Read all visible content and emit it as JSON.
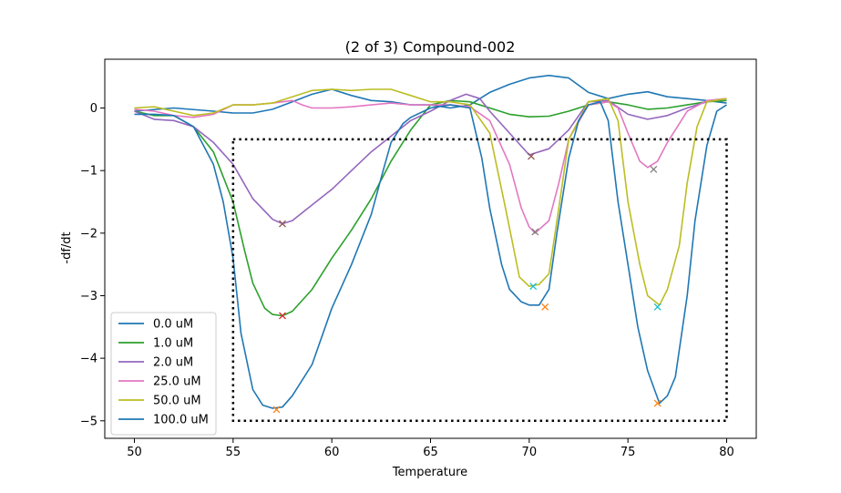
{
  "chart_data": {
    "type": "line",
    "title": "(2 of 3) Compound-002",
    "xlabel": "Temperature",
    "ylabel": "-df/dt",
    "xlim": [
      48.5,
      81.5
    ],
    "ylim": [
      -5.28,
      0.78
    ],
    "xticks": [
      50,
      55,
      60,
      65,
      70,
      75,
      80
    ],
    "yticks": [
      0,
      -1,
      -2,
      -3,
      -4,
      -5
    ],
    "grid": false,
    "legend_position": "lower-left",
    "series": [
      {
        "name": "0.0 uM",
        "color": "#1f77b4",
        "points": [
          [
            50,
            -0.05
          ],
          [
            52,
            0.0
          ],
          [
            54,
            -0.05
          ],
          [
            55,
            -0.08
          ],
          [
            56,
            -0.08
          ],
          [
            57,
            -0.02
          ],
          [
            58,
            0.1
          ],
          [
            59,
            0.22
          ],
          [
            60,
            0.3
          ],
          [
            61,
            0.2
          ],
          [
            62,
            0.12
          ],
          [
            63,
            0.1
          ],
          [
            64,
            0.05
          ],
          [
            65,
            0.05
          ],
          [
            66,
            0.0
          ],
          [
            67,
            0.05
          ],
          [
            68,
            0.25
          ],
          [
            69,
            0.38
          ],
          [
            70,
            0.48
          ],
          [
            71,
            0.52
          ],
          [
            72,
            0.48
          ],
          [
            73,
            0.25
          ],
          [
            74,
            0.15
          ],
          [
            75,
            0.22
          ],
          [
            76,
            0.26
          ],
          [
            77,
            0.18
          ],
          [
            78,
            0.15
          ],
          [
            79,
            0.12
          ],
          [
            80,
            0.08
          ]
        ]
      },
      {
        "name": "1.0 uM",
        "color": "#2ca02c",
        "points": [
          [
            50,
            -0.05
          ],
          [
            51,
            -0.12
          ],
          [
            52,
            -0.12
          ],
          [
            53,
            -0.3
          ],
          [
            54,
            -0.7
          ],
          [
            55,
            -1.5
          ],
          [
            55.6,
            -2.3
          ],
          [
            56,
            -2.8
          ],
          [
            56.6,
            -3.2
          ],
          [
            57,
            -3.3
          ],
          [
            57.5,
            -3.32
          ],
          [
            58,
            -3.25
          ],
          [
            59,
            -2.9
          ],
          [
            60,
            -2.4
          ],
          [
            61,
            -1.95
          ],
          [
            62,
            -1.45
          ],
          [
            63,
            -0.85
          ],
          [
            64,
            -0.35
          ],
          [
            65,
            0.05
          ],
          [
            66,
            0.12
          ],
          [
            67,
            0.1
          ],
          [
            68,
            0.0
          ],
          [
            69,
            -0.1
          ],
          [
            70,
            -0.14
          ],
          [
            71,
            -0.13
          ],
          [
            72,
            -0.05
          ],
          [
            73,
            0.05
          ],
          [
            74,
            0.1
          ],
          [
            75,
            0.05
          ],
          [
            76,
            -0.02
          ],
          [
            77,
            0.0
          ],
          [
            78,
            0.05
          ],
          [
            79,
            0.1
          ],
          [
            80,
            0.12
          ]
        ]
      },
      {
        "name": "2.0 uM",
        "color": "#9467bd",
        "points": [
          [
            50,
            -0.05
          ],
          [
            51,
            -0.18
          ],
          [
            52,
            -0.2
          ],
          [
            53,
            -0.3
          ],
          [
            54,
            -0.55
          ],
          [
            55,
            -0.9
          ],
          [
            56,
            -1.45
          ],
          [
            57,
            -1.78
          ],
          [
            57.5,
            -1.85
          ],
          [
            58,
            -1.8
          ],
          [
            59,
            -1.55
          ],
          [
            60,
            -1.3
          ],
          [
            61,
            -1.0
          ],
          [
            62,
            -0.7
          ],
          [
            63,
            -0.45
          ],
          [
            64,
            -0.2
          ],
          [
            65,
            -0.05
          ],
          [
            66,
            0.12
          ],
          [
            66.8,
            0.22
          ],
          [
            67.5,
            0.15
          ],
          [
            68,
            -0.05
          ],
          [
            69,
            -0.4
          ],
          [
            70,
            -0.75
          ],
          [
            71,
            -0.65
          ],
          [
            72,
            -0.35
          ],
          [
            73,
            0.1
          ],
          [
            74,
            0.12
          ],
          [
            75,
            -0.1
          ],
          [
            76,
            -0.18
          ],
          [
            77,
            -0.12
          ],
          [
            78,
            0.0
          ],
          [
            79,
            0.1
          ],
          [
            80,
            0.15
          ]
        ]
      },
      {
        "name": "25.0 uM",
        "color": "#e377c2",
        "points": [
          [
            50,
            -0.02
          ],
          [
            51,
            -0.05
          ],
          [
            52,
            -0.12
          ],
          [
            53,
            -0.15
          ],
          [
            54,
            -0.1
          ],
          [
            55,
            0.05
          ],
          [
            56,
            0.05
          ],
          [
            57,
            0.08
          ],
          [
            58,
            0.12
          ],
          [
            58.5,
            0.05
          ],
          [
            59,
            0.0
          ],
          [
            60,
            0.0
          ],
          [
            61,
            0.02
          ],
          [
            62,
            0.05
          ],
          [
            63,
            0.08
          ],
          [
            64,
            0.05
          ],
          [
            65,
            0.05
          ],
          [
            66,
            0.05
          ],
          [
            67,
            0.02
          ],
          [
            68,
            -0.2
          ],
          [
            69,
            -0.9
          ],
          [
            69.6,
            -1.6
          ],
          [
            70,
            -1.9
          ],
          [
            70.3,
            -2.0
          ],
          [
            71,
            -1.8
          ],
          [
            71.5,
            -1.2
          ],
          [
            72,
            -0.5
          ],
          [
            73,
            0.05
          ],
          [
            74,
            0.1
          ],
          [
            74.5,
            0.0
          ],
          [
            75,
            -0.4
          ],
          [
            75.6,
            -0.85
          ],
          [
            76,
            -0.95
          ],
          [
            76.5,
            -0.85
          ],
          [
            77,
            -0.55
          ],
          [
            78,
            -0.05
          ],
          [
            79,
            0.12
          ],
          [
            80,
            0.15
          ]
        ]
      },
      {
        "name": "50.0 uM",
        "color": "#bcbd22",
        "points": [
          [
            50,
            0.0
          ],
          [
            51,
            0.02
          ],
          [
            52,
            -0.05
          ],
          [
            53,
            -0.12
          ],
          [
            54,
            -0.08
          ],
          [
            55,
            0.05
          ],
          [
            56,
            0.05
          ],
          [
            57,
            0.08
          ],
          [
            58,
            0.18
          ],
          [
            59,
            0.28
          ],
          [
            60,
            0.3
          ],
          [
            61,
            0.28
          ],
          [
            62,
            0.3
          ],
          [
            63,
            0.3
          ],
          [
            64,
            0.2
          ],
          [
            65,
            0.1
          ],
          [
            66,
            0.1
          ],
          [
            67,
            0.05
          ],
          [
            68,
            -0.4
          ],
          [
            68.8,
            -1.6
          ],
          [
            69.5,
            -2.7
          ],
          [
            70,
            -2.85
          ],
          [
            70.5,
            -2.82
          ],
          [
            71,
            -2.65
          ],
          [
            71.5,
            -1.6
          ],
          [
            72,
            -0.5
          ],
          [
            73,
            0.1
          ],
          [
            74,
            0.15
          ],
          [
            74.5,
            -0.2
          ],
          [
            75,
            -1.5
          ],
          [
            75.6,
            -2.5
          ],
          [
            76,
            -3.0
          ],
          [
            76.6,
            -3.15
          ],
          [
            77,
            -2.9
          ],
          [
            77.6,
            -2.2
          ],
          [
            78,
            -1.2
          ],
          [
            78.5,
            -0.3
          ],
          [
            79,
            0.1
          ],
          [
            80,
            0.15
          ]
        ]
      },
      {
        "name": "100.0 uM",
        "color": "#1f77b4",
        "points": [
          [
            50,
            -0.1
          ],
          [
            51,
            -0.1
          ],
          [
            52,
            -0.12
          ],
          [
            53,
            -0.3
          ],
          [
            54,
            -0.9
          ],
          [
            54.5,
            -1.5
          ],
          [
            55,
            -2.4
          ],
          [
            55.4,
            -3.6
          ],
          [
            56,
            -4.5
          ],
          [
            56.5,
            -4.75
          ],
          [
            57,
            -4.8
          ],
          [
            57.5,
            -4.78
          ],
          [
            58,
            -4.6
          ],
          [
            59,
            -4.1
          ],
          [
            60,
            -3.2
          ],
          [
            61,
            -2.5
          ],
          [
            62,
            -1.7
          ],
          [
            62.6,
            -1.0
          ],
          [
            63,
            -0.55
          ],
          [
            63.6,
            -0.25
          ],
          [
            64,
            -0.15
          ],
          [
            65,
            0.0
          ],
          [
            66,
            0.05
          ],
          [
            67,
            0.0
          ],
          [
            67.6,
            -0.8
          ],
          [
            68,
            -1.6
          ],
          [
            68.6,
            -2.5
          ],
          [
            69,
            -2.9
          ],
          [
            69.6,
            -3.1
          ],
          [
            70,
            -3.15
          ],
          [
            70.5,
            -3.15
          ],
          [
            71,
            -2.9
          ],
          [
            71.4,
            -2.0
          ],
          [
            72,
            -0.8
          ],
          [
            72.5,
            -0.2
          ],
          [
            73,
            0.05
          ],
          [
            73.6,
            0.1
          ],
          [
            74,
            -0.2
          ],
          [
            74.5,
            -1.5
          ],
          [
            75,
            -2.5
          ],
          [
            75.5,
            -3.5
          ],
          [
            76,
            -4.2
          ],
          [
            76.6,
            -4.72
          ],
          [
            77,
            -4.6
          ],
          [
            77.4,
            -4.3
          ],
          [
            78,
            -3.0
          ],
          [
            78.4,
            -1.8
          ],
          [
            79,
            -0.6
          ],
          [
            79.5,
            -0.05
          ],
          [
            80,
            0.05
          ]
        ]
      }
    ],
    "markers": [
      {
        "x": 57.5,
        "y": -1.85,
        "color": "#8c564b"
      },
      {
        "x": 57.5,
        "y": -3.32,
        "color": "#d62728"
      },
      {
        "x": 57.2,
        "y": -4.82,
        "color": "#ff7f0e"
      },
      {
        "x": 70.1,
        "y": -0.77,
        "color": "#8c564b"
      },
      {
        "x": 70.3,
        "y": -1.98,
        "color": "#7f7f7f"
      },
      {
        "x": 70.2,
        "y": -2.85,
        "color": "#17becf"
      },
      {
        "x": 70.8,
        "y": -3.18,
        "color": "#ff7f0e"
      },
      {
        "x": 76.3,
        "y": -0.98,
        "color": "#7f7f7f"
      },
      {
        "x": 76.5,
        "y": -3.18,
        "color": "#17becf"
      },
      {
        "x": 76.5,
        "y": -4.72,
        "color": "#ff7f0e"
      }
    ],
    "region_box": {
      "x": [
        55,
        80
      ],
      "y": [
        -5.0,
        -0.5
      ]
    }
  }
}
